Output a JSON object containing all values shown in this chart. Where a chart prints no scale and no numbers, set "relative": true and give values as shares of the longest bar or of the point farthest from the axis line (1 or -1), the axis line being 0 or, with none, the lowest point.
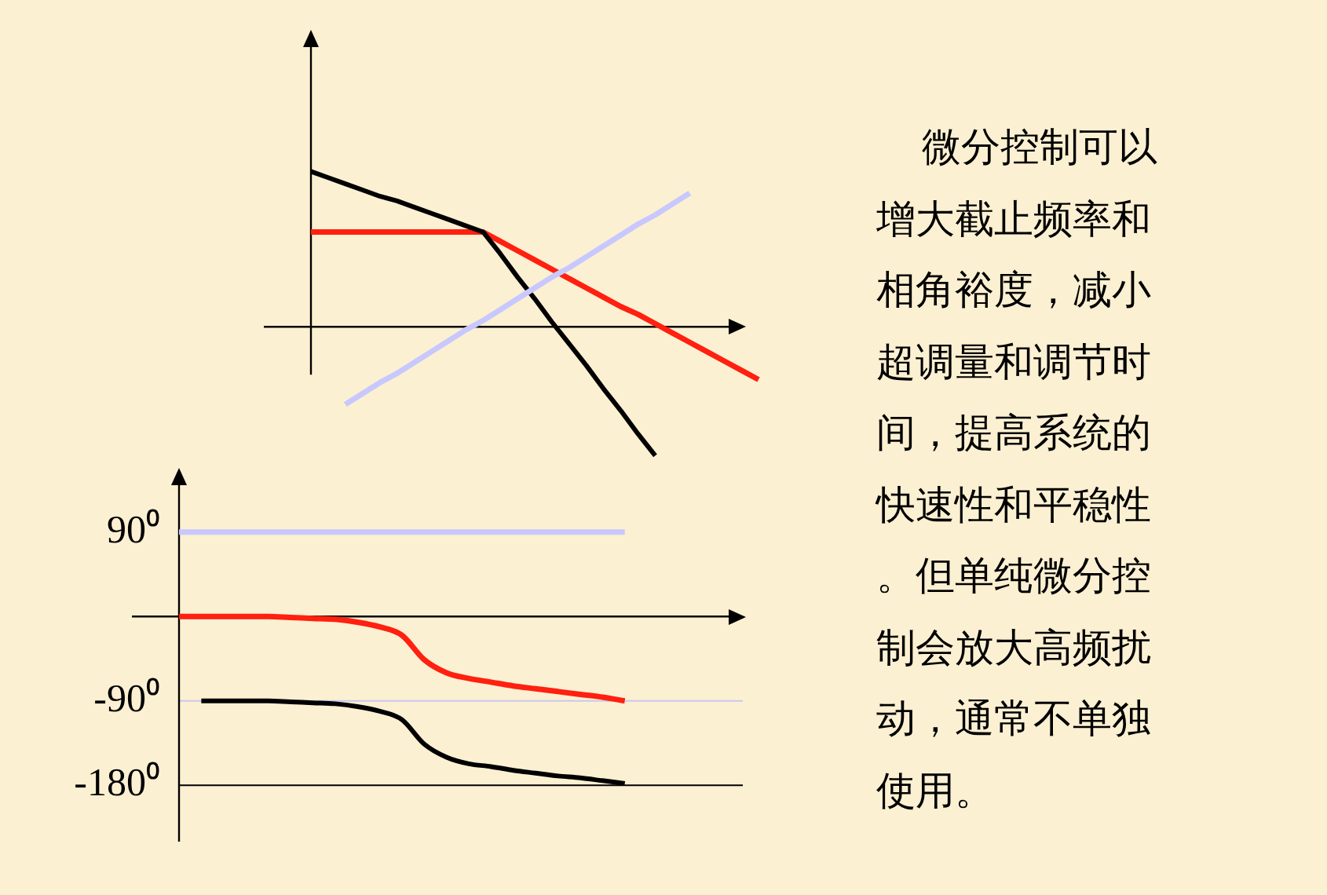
{
  "chart_data": [
    {
      "type": "line",
      "relative": true,
      "tick_labels": false,
      "categories": [
        null,
        null,
        null,
        null,
        null,
        null,
        null,
        null,
        null,
        null,
        null,
        null,
        null,
        null,
        null,
        null,
        null,
        null,
        null,
        null,
        null,
        null,
        null,
        null,
        null,
        null,
        null
      ],
      "series": [
        {
          "color": "#c8c8ff",
          "values": [
            null,
            null,
            -0.5,
            -0.43,
            -0.36,
            -0.3,
            -0.23,
            -0.16,
            -0.09,
            -0.02,
            0.04,
            0.11,
            0.18,
            0.25,
            0.32,
            0.38,
            0.45,
            0.52,
            0.59,
            0.66,
            0.72,
            0.79,
            0.86,
            null,
            null,
            null,
            null
          ]
        },
        {
          "color": "#000000",
          "values": [
            1.0,
            0.96,
            0.92,
            0.88,
            0.84,
            0.81,
            0.77,
            0.73,
            0.69,
            0.65,
            0.61,
            0.47,
            0.32,
            0.18,
            0.03,
            -0.11,
            -0.25,
            -0.4,
            -0.54,
            -0.69,
            -0.83,
            null,
            null,
            null,
            null,
            null,
            null
          ]
        },
        {
          "color": "#ff2010",
          "values": [
            0.61,
            0.61,
            0.61,
            0.61,
            0.61,
            0.61,
            0.61,
            0.61,
            0.61,
            0.61,
            0.61,
            0.55,
            0.49,
            0.43,
            0.37,
            0.31,
            0.25,
            0.19,
            0.13,
            0.08,
            0.02,
            -0.04,
            -0.1,
            -0.16,
            -0.22,
            -0.28,
            -0.34
          ]
        }
      ]
    },
    {
      "type": "line",
      "tick_labels": "y",
      "ylim": [
        -240,
        140
      ],
      "yticks": [
        {
          "value": 90,
          "label": "90⁰"
        },
        {
          "value": -90,
          "label": "-90⁰"
        },
        {
          "value": -180,
          "label": "-180⁰"
        }
      ],
      "ref_lines": [
        {
          "axis": "y",
          "value": -90,
          "color": "#c8c8f0"
        },
        {
          "axis": "y",
          "value": -180,
          "color": "#000000"
        }
      ],
      "categories": [
        null,
        null,
        null,
        null,
        null,
        null,
        null,
        null,
        null,
        null,
        null,
        null,
        null,
        null,
        null,
        null,
        null,
        null,
        null,
        null,
        null,
        null,
        null,
        null,
        null,
        null,
        null
      ],
      "series": [
        {
          "color": "#c8c8ff",
          "values": [
            90,
            90,
            90,
            90,
            90,
            90,
            90,
            90,
            90,
            90,
            90,
            90,
            90,
            90,
            90,
            90,
            90,
            90,
            90,
            90,
            90,
            null,
            null,
            null,
            null,
            null,
            null
          ]
        },
        {
          "color": "#ff2010",
          "values": [
            0,
            0,
            0,
            0,
            0,
            -1,
            -2,
            -3,
            -6,
            -11,
            -20,
            -46,
            -60,
            -66,
            -70,
            -74,
            -77,
            -80,
            -83,
            -86,
            -90,
            null,
            null,
            null,
            null,
            null,
            null
          ]
        },
        {
          "color": "#000000",
          "values": [
            null,
            -90,
            -90,
            -90,
            -90,
            -91,
            -92,
            -93,
            -96,
            -101,
            -110,
            -136,
            -150,
            -157,
            -160,
            -164,
            -167,
            -170,
            -172,
            -175,
            -178,
            null,
            null,
            null,
            null,
            null,
            null
          ]
        }
      ]
    },
    {
      "type": "other",
      "annotations": [
        "微分控制可以",
        "增大截止频率和",
        "相角裕度，减小",
        "超调量和调节时",
        "间，提高系统的",
        "快速性和平稳性",
        "。但单纯微分控",
        "制会放大高频扰",
        "动，通常不单独",
        "使用。"
      ]
    }
  ]
}
